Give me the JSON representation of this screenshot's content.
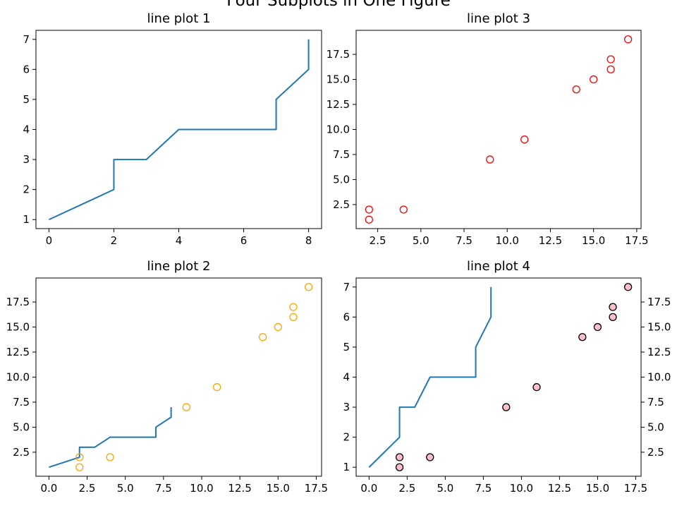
{
  "figure_title": "Four Subplots in One Figure",
  "chart_data": [
    {
      "type": "line",
      "title": "line plot 1",
      "xlim": [
        -0.4,
        8.4
      ],
      "ylim": [
        0.7,
        7.3
      ],
      "xticks": [
        0,
        2,
        4,
        6,
        8
      ],
      "yticks": [
        1,
        2,
        3,
        4,
        5,
        6,
        7
      ],
      "series": [
        {
          "kind": "line",
          "color": "#1f77b4",
          "x": [
            0,
            2,
            2,
            3,
            4,
            7,
            7,
            8,
            8
          ],
          "y": [
            1,
            2,
            3,
            3,
            4,
            4,
            5,
            6,
            7
          ]
        }
      ]
    },
    {
      "type": "line",
      "title": "line plot 2",
      "xlim": [
        -0.85,
        17.85
      ],
      "ylim": [
        0.1,
        19.9
      ],
      "xticks": [
        0.0,
        2.5,
        5.0,
        7.5,
        10.0,
        12.5,
        15.0,
        17.5
      ],
      "xtick_labels": [
        "0.0",
        "2.5",
        "5.0",
        "7.5",
        "10.0",
        "12.5",
        "15.0",
        "17.5"
      ],
      "yticks": [
        2.5,
        5.0,
        7.5,
        10.0,
        12.5,
        15.0,
        17.5
      ],
      "ytick_labels": [
        "2.5",
        "5.0",
        "7.5",
        "10.0",
        "12.5",
        "15.0",
        "17.5"
      ],
      "series": [
        {
          "kind": "line",
          "color": "#1f77b4",
          "x": [
            0,
            2,
            2,
            3,
            4,
            7,
            7,
            8,
            8
          ],
          "y": [
            1,
            2,
            3,
            3,
            4,
            4,
            5,
            6,
            7
          ]
        },
        {
          "kind": "scatter",
          "marker": "hollow-circle",
          "edge_color": "#ffa500",
          "x": [
            2,
            2,
            4,
            9,
            11,
            14,
            15,
            16,
            16,
            17
          ],
          "y": [
            1,
            2,
            2,
            7,
            9,
            14,
            15,
            16,
            17,
            19
          ]
        }
      ]
    },
    {
      "type": "scatter",
      "title": "line plot 3",
      "xlim": [
        1.25,
        17.75
      ],
      "ylim": [
        0.1,
        19.9
      ],
      "xticks": [
        2.5,
        5.0,
        7.5,
        10.0,
        12.5,
        15.0,
        17.5
      ],
      "xtick_labels": [
        "2.5",
        "5.0",
        "7.5",
        "10.0",
        "12.5",
        "15.0",
        "17.5"
      ],
      "yticks": [
        2.5,
        5.0,
        7.5,
        10.0,
        12.5,
        15.0,
        17.5
      ],
      "ytick_labels": [
        "2.5",
        "5.0",
        "7.5",
        "10.0",
        "12.5",
        "15.0",
        "17.5"
      ],
      "series": [
        {
          "kind": "scatter",
          "marker": "hollow-circle",
          "edge_color": "#ff0000",
          "x": [
            2,
            2,
            4,
            9,
            11,
            14,
            15,
            16,
            16,
            17
          ],
          "y": [
            1,
            2,
            2,
            7,
            9,
            14,
            15,
            16,
            17,
            19
          ]
        }
      ]
    },
    {
      "type": "line",
      "title": "line plot 4",
      "xlim": [
        -0.85,
        17.85
      ],
      "ylim": [
        0.7,
        7.3
      ],
      "xticks": [
        0.0,
        2.5,
        5.0,
        7.5,
        10.0,
        12.5,
        15.0,
        17.5
      ],
      "xtick_labels": [
        "0.0",
        "2.5",
        "5.0",
        "7.5",
        "10.0",
        "12.5",
        "15.0",
        "17.5"
      ],
      "yticks": [
        1,
        2,
        3,
        4,
        5,
        6,
        7
      ],
      "y2lim": [
        0.1,
        19.9
      ],
      "y2ticks": [
        2.5,
        5.0,
        7.5,
        10.0,
        12.5,
        15.0,
        17.5
      ],
      "y2tick_labels": [
        "2.5",
        "5.0",
        "7.5",
        "10.0",
        "12.5",
        "15.0",
        "17.5"
      ],
      "series": [
        {
          "kind": "line",
          "color": "#1f77b4",
          "x": [
            0,
            2,
            2,
            3,
            4,
            7,
            7,
            8,
            8
          ],
          "y": [
            1,
            2,
            3,
            3,
            4,
            4,
            5,
            6,
            7
          ]
        },
        {
          "kind": "scatter",
          "axis": "right",
          "marker": "filled-circle",
          "face_color": "#ffc0cb",
          "edge_color": "#000000",
          "x": [
            2,
            2,
            4,
            9,
            11,
            14,
            15,
            16,
            16,
            17
          ],
          "y": [
            1,
            2,
            2,
            7,
            9,
            14,
            15,
            16,
            17,
            19
          ]
        }
      ]
    }
  ]
}
